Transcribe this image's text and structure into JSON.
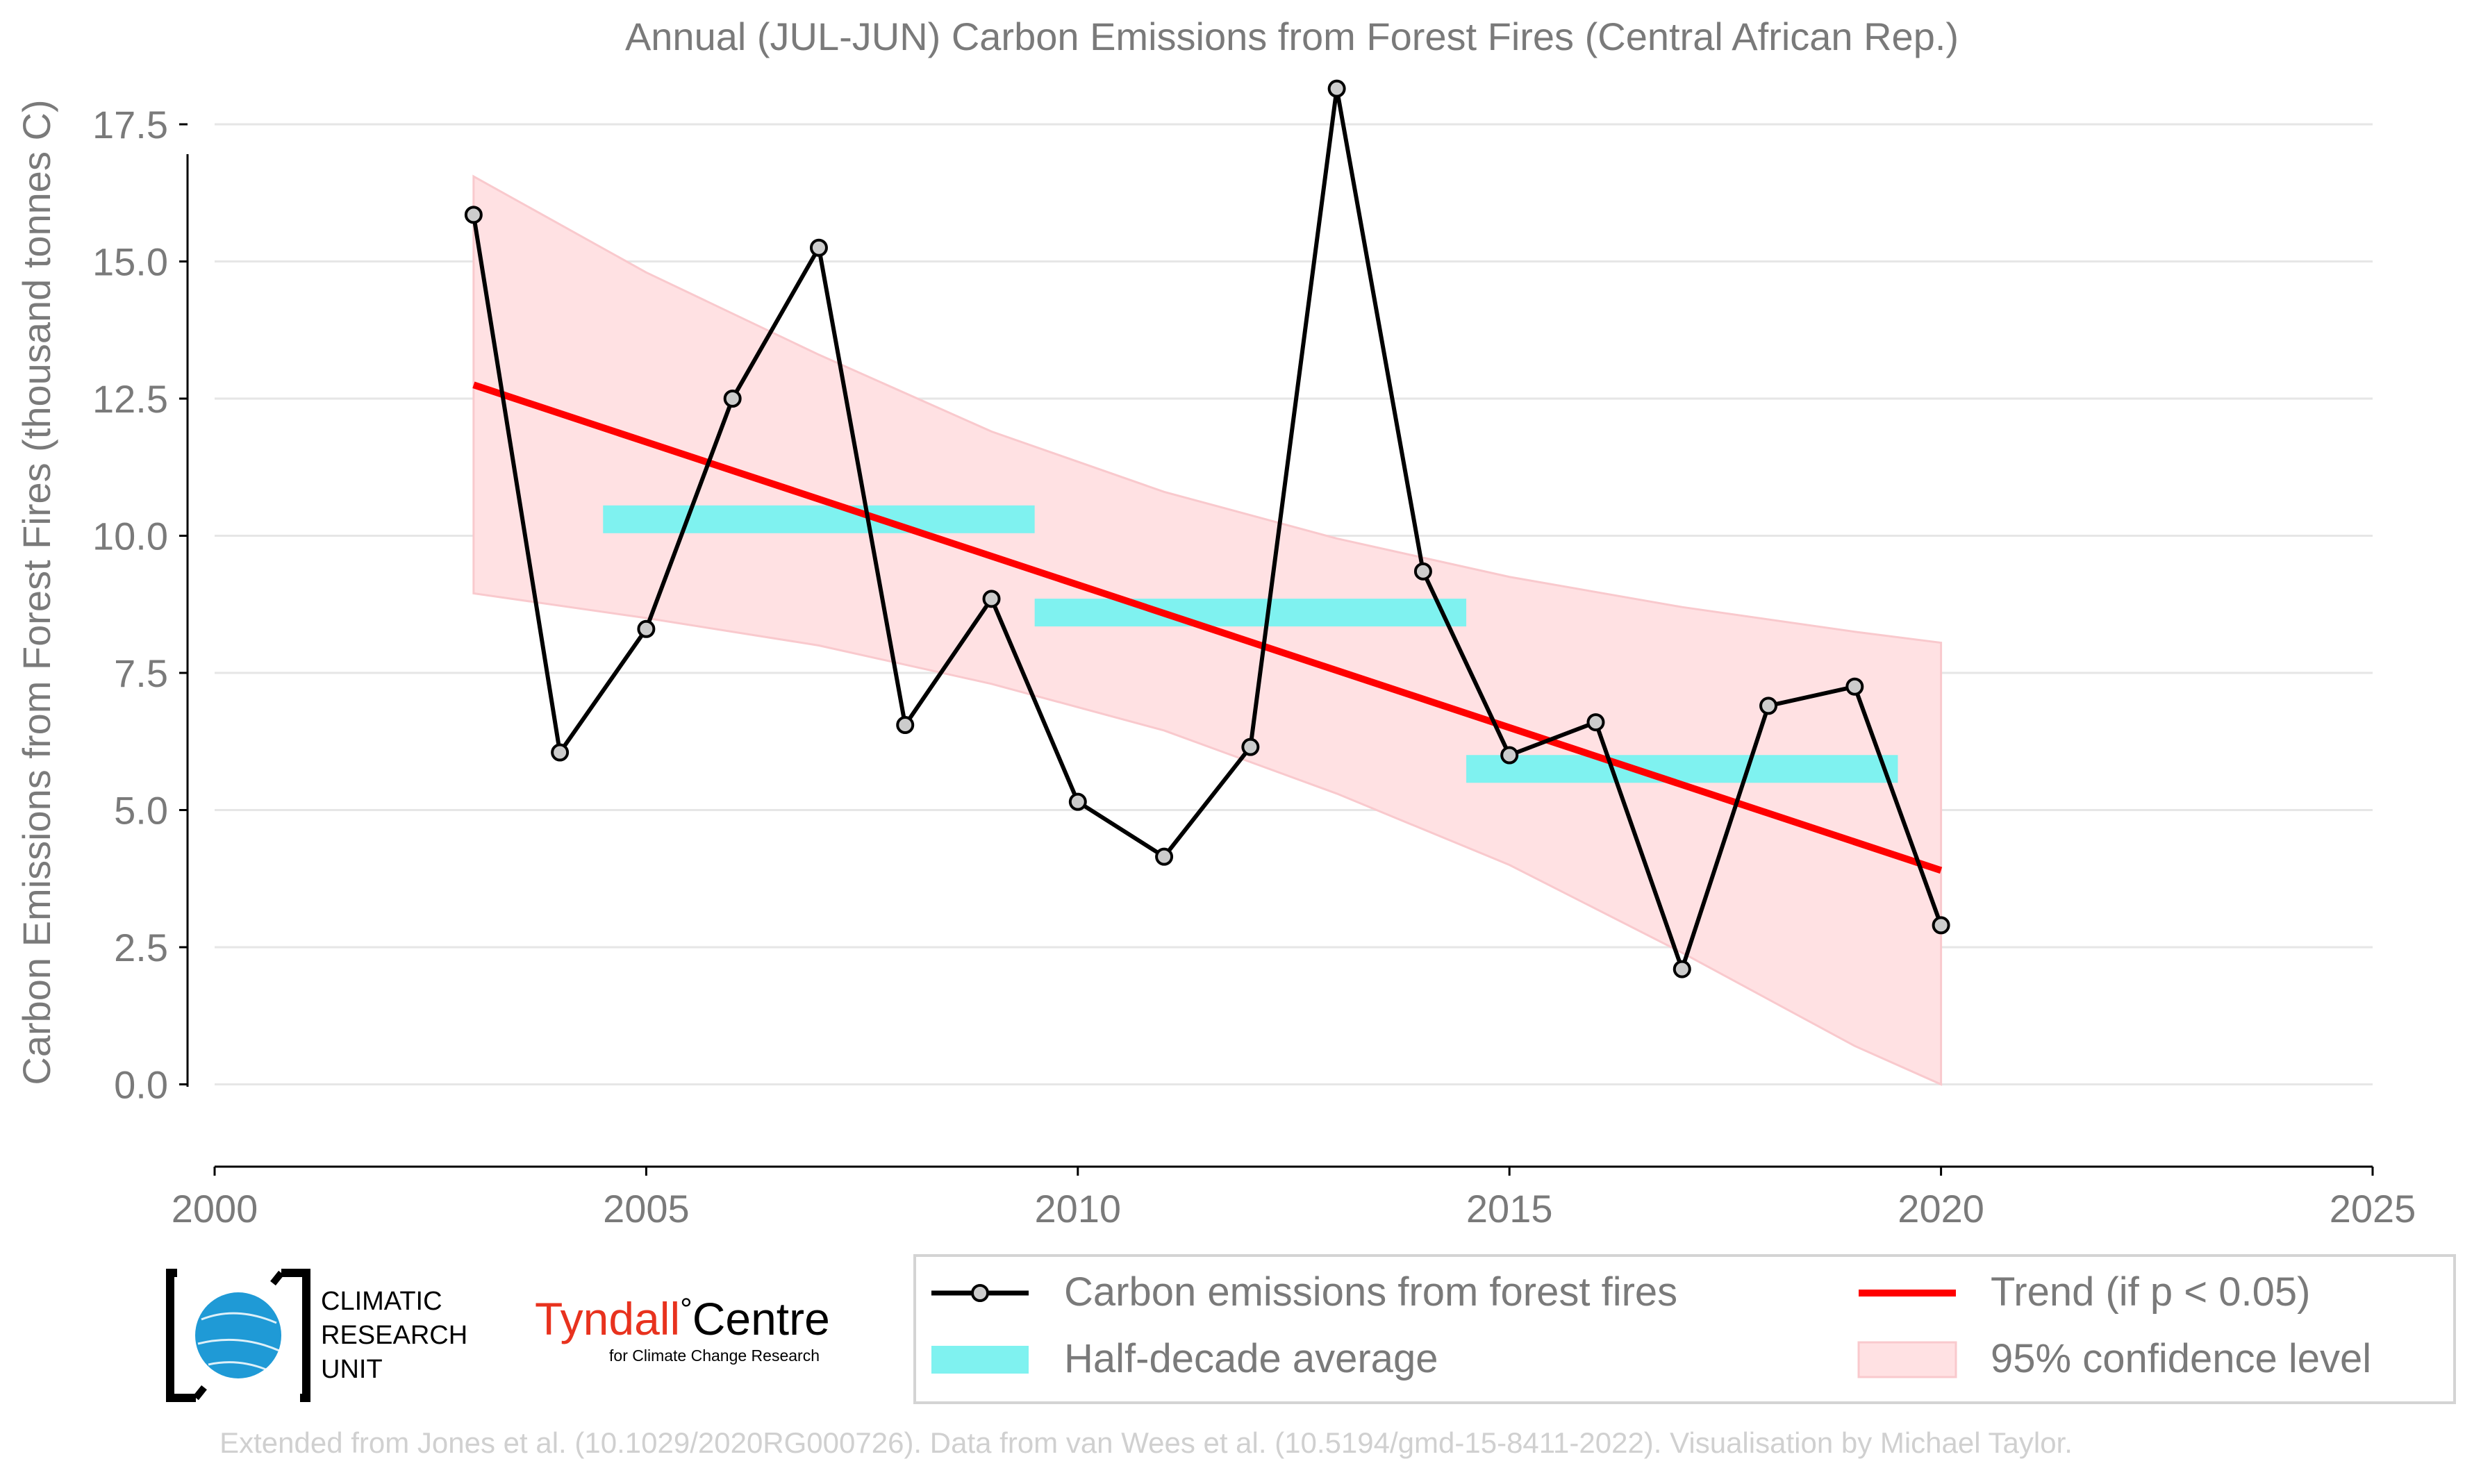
{
  "chart_data": {
    "type": "line",
    "title": "Annual (JUL-JUN) Carbon Emissions from Forest Fires (Central African Rep.)",
    "xlabel": "",
    "ylabel": "Carbon Emissions from Forest Fires (thousand tonnes C)",
    "xlim": [
      2000,
      2025
    ],
    "ylim": [
      -1.5,
      18.5
    ],
    "xticks": [
      2000,
      2005,
      2010,
      2015,
      2020,
      2025
    ],
    "xtick_labels": [
      "2000",
      "2005",
      "2010",
      "2015",
      "2020",
      "2025"
    ],
    "yticks": [
      0,
      2.5,
      5,
      7.5,
      10,
      12.5,
      15,
      17.5
    ],
    "ytick_labels": [
      "0.0",
      "2.5",
      "5.0",
      "7.5",
      "10.0",
      "12.5",
      "15.0",
      "17.5"
    ],
    "grid": "horizontal",
    "series": [
      {
        "name": "Carbon emissions from forest fires",
        "x": [
          2003,
          2004,
          2005,
          2006,
          2007,
          2008,
          2009,
          2010,
          2011,
          2012,
          2013,
          2014,
          2015,
          2016,
          2017,
          2018,
          2019,
          2020
        ],
        "y": [
          15.85,
          6.05,
          8.3,
          12.5,
          15.25,
          6.55,
          8.85,
          5.15,
          4.15,
          6.15,
          18.15,
          9.35,
          6.0,
          6.6,
          2.1,
          6.9,
          7.25,
          2.9
        ],
        "color": "#000000",
        "marker_fill": "#cccccc"
      },
      {
        "name": "Trend (if p < 0.05)",
        "x": [
          2003,
          2020
        ],
        "y": [
          12.75,
          3.9
        ],
        "color": "#ff0000"
      },
      {
        "name": "Half-decade average",
        "segments": [
          {
            "x0": 2004.5,
            "x1": 2009.5,
            "y": 10.3
          },
          {
            "x0": 2009.5,
            "x1": 2014.5,
            "y": 8.6
          },
          {
            "x0": 2014.5,
            "x1": 2019.5,
            "y": 5.75
          }
        ],
        "color": "#7ff2f0"
      },
      {
        "name": "95% confidence level",
        "x": [
          2003,
          2005,
          2007,
          2009,
          2011,
          2013,
          2015,
          2017,
          2019,
          2020
        ],
        "upper": [
          16.55,
          14.8,
          13.3,
          11.9,
          10.8,
          9.95,
          9.25,
          8.7,
          8.25,
          8.05
        ],
        "lower": [
          8.95,
          8.5,
          8.0,
          7.3,
          6.45,
          5.3,
          4.0,
          2.4,
          0.7,
          0.0
        ],
        "color": "#ffe1e3"
      }
    ],
    "legend": {
      "position": "bottom-right",
      "entries": [
        "Carbon emissions from forest fires",
        "Trend (if p < 0.05)",
        "Half-decade average",
        "95% confidence level"
      ]
    }
  },
  "logos": {
    "cru": [
      "CLIMATIC",
      "RESEARCH",
      "UNIT"
    ],
    "tyndall_main": "Tyndall",
    "tyndall_degree": "°",
    "tyndall_centre": "Centre",
    "tyndall_sub": "for Climate Change Research"
  },
  "footer": {
    "credit": "Extended from Jones et al. (10.1029/2020RG000726). Data from van Wees et al. (10.5194/gmd-15-8411-2022). Visualisation by Michael Taylor."
  },
  "colors": {
    "text": "#7a7a7a",
    "grid": "#e6e6e6",
    "axis": "#000000",
    "credit": "#d0d0d0",
    "tyndall": "#e8321e",
    "cru_globe": "#1f9ad6"
  }
}
